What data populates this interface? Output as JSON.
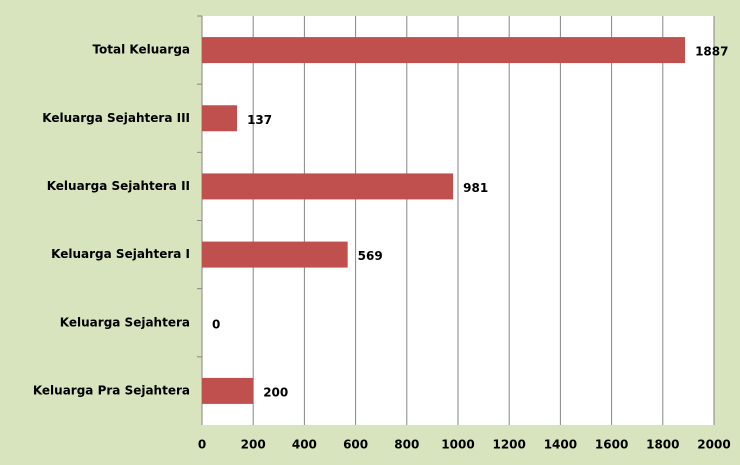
{
  "chart_data": {
    "type": "barh",
    "categories": [
      "Total Keluarga",
      "Keluarga Sejahtera III",
      "Keluarga Sejahtera II",
      "Keluarga Sejahtera I",
      "Keluarga Sejahtera",
      "Keluarga Pra Sejahtera"
    ],
    "values": [
      1887,
      137,
      981,
      569,
      0,
      200
    ],
    "color": "#c0504d",
    "xlim": [
      0,
      2000
    ],
    "xticks": [
      0,
      200,
      400,
      600,
      800,
      1000,
      1200,
      1400,
      1600,
      1800,
      2000
    ],
    "grid": true
  }
}
